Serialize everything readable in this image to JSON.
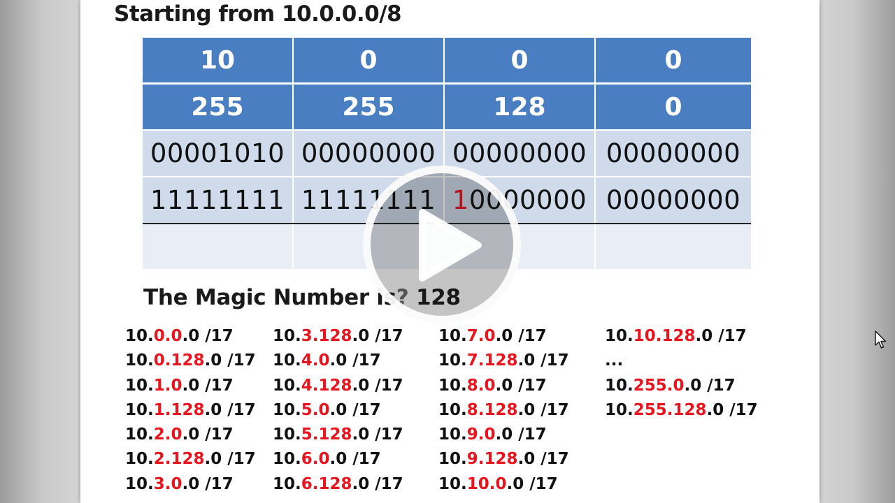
{
  "slide": {
    "title": "Starting from 10.0.0.0/8",
    "table": {
      "address_row": [
        "10",
        "0",
        "0",
        "0"
      ],
      "mask_row": [
        "255",
        "255",
        "128",
        "0"
      ],
      "address_binary": [
        "00001010",
        "00000000",
        "00000000",
        "00000000"
      ],
      "mask_binary": {
        "col1": "11111111",
        "col2": "11111111",
        "col3_red": "1",
        "col3_rest": "0000000",
        "col4": "00000000"
      }
    },
    "magic_line": {
      "label": "The Magic Number is",
      "question": "?",
      "value": "128"
    },
    "subnets": {
      "col1": [
        {
          "pre": "10.",
          "hi": "0.0",
          "post": ".0 /17"
        },
        {
          "pre": "10.",
          "hi": "0.128",
          "post": ".0 /17"
        },
        {
          "pre": "10.",
          "hi": "1.0",
          "post": ".0 /17"
        },
        {
          "pre": "10.",
          "hi": "1.128",
          "post": ".0 /17"
        },
        {
          "pre": "10.",
          "hi": "2.0",
          "post": ".0 /17"
        },
        {
          "pre": "10.",
          "hi": "2.128",
          "post": ".0 /17"
        },
        {
          "pre": "10.",
          "hi": "3.0",
          "post": ".0 /17"
        }
      ],
      "col2": [
        {
          "pre": "10.",
          "hi": "3.128",
          "post": ".0 /17"
        },
        {
          "pre": "10.",
          "hi": "4.0",
          "post": ".0 /17"
        },
        {
          "pre": "10.",
          "hi": "4.128",
          "post": ".0 /17"
        },
        {
          "pre": "10.",
          "hi": "5.0",
          "post": ".0 /17"
        },
        {
          "pre": "10.",
          "hi": "5.128",
          "post": ".0 /17"
        },
        {
          "pre": "10.",
          "hi": "6.0",
          "post": ".0 /17"
        },
        {
          "pre": "10.",
          "hi": "6.128",
          "post": ".0 /17"
        }
      ],
      "col3": [
        {
          "pre": "10.",
          "hi": "7.0",
          "post": ".0 /17"
        },
        {
          "pre": "10.",
          "hi": "7.128",
          "post": ".0 /17"
        },
        {
          "pre": "10.",
          "hi": "8.0",
          "post": ".0 /17"
        },
        {
          "pre": "10.",
          "hi": "8.128",
          "post": ".0 /17"
        },
        {
          "pre": "10.",
          "hi": "9.0",
          "post": ".0 /17"
        },
        {
          "pre": "10.",
          "hi": "9.128",
          "post": ".0 /17"
        },
        {
          "pre": "10.",
          "hi": "10.0",
          "post": ".0 /17"
        }
      ],
      "col4": [
        {
          "pre": "10.",
          "hi": "10.128",
          "post": ".0 /17"
        },
        {
          "pre": "...",
          "hi": "",
          "post": ""
        },
        {
          "pre": "10.",
          "hi": "255.0",
          "post": ".0 /17"
        },
        {
          "pre": "10.",
          "hi": "255.128",
          "post": ".0 /17"
        }
      ]
    }
  },
  "player": {
    "play_icon": "play-icon",
    "cursor_icon": "mouse-pointer-icon"
  },
  "colors": {
    "header_blue": "#4a7ec3",
    "binary_row": "#cfdaea",
    "highlight_red": "#e8141e"
  }
}
